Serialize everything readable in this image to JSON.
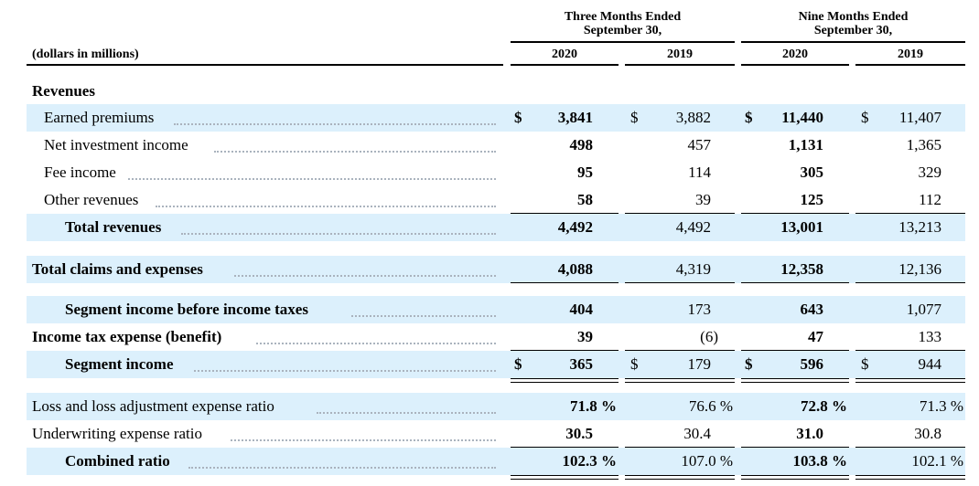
{
  "header": {
    "unit_label": "(dollars in millions)",
    "group1": "Three Months Ended\nSeptember 30,",
    "group2": "Nine Months Ended\nSeptember 30,",
    "years": [
      "2020",
      "2019",
      "2020",
      "2019"
    ]
  },
  "section_revenues": "Revenues",
  "rows": {
    "earned_premiums": {
      "label": "Earned premiums",
      "v": [
        "3,841",
        "3,882",
        "11,440",
        "11,407"
      ],
      "dollar": "$"
    },
    "net_investment_income": {
      "label": "Net investment income",
      "v": [
        "498",
        "457",
        "1,131",
        "1,365"
      ]
    },
    "fee_income": {
      "label": "Fee income",
      "v": [
        "95",
        "114",
        "305",
        "329"
      ]
    },
    "other_revenues": {
      "label": "Other revenues",
      "v": [
        "58",
        "39",
        "125",
        "112"
      ]
    },
    "total_revenues": {
      "label": "Total revenues",
      "v": [
        "4,492",
        "4,492",
        "13,001",
        "13,213"
      ]
    },
    "total_claims": {
      "label": "Total claims and expenses",
      "v": [
        "4,088",
        "4,319",
        "12,358",
        "12,136"
      ]
    },
    "segment_income_before_tax": {
      "label": "Segment income before income taxes",
      "v": [
        "404",
        "173",
        "643",
        "1,077"
      ]
    },
    "income_tax": {
      "label": "Income tax expense (benefit)",
      "v": [
        "39",
        "(6)",
        "47",
        "133"
      ]
    },
    "segment_income": {
      "label": "Segment income",
      "v": [
        "365",
        "179",
        "596",
        "944"
      ],
      "dollar": "$"
    },
    "loss_ratio": {
      "label": "Loss and loss adjustment expense ratio",
      "v": [
        "71.8 %",
        "76.6 %",
        "72.8 %",
        "71.3 %"
      ]
    },
    "underwriting_ratio": {
      "label": "Underwriting expense ratio",
      "v": [
        "30.5",
        "30.4",
        "31.0",
        "30.8"
      ]
    },
    "combined_ratio": {
      "label": "Combined ratio",
      "v": [
        "102.3 %",
        "107.0 %",
        "103.8 %",
        "102.1 %"
      ]
    }
  }
}
